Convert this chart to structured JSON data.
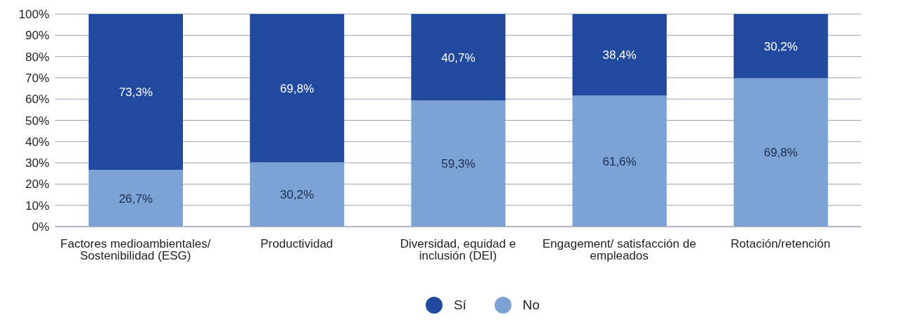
{
  "chart_data": {
    "type": "bar",
    "stacked": true,
    "categories": [
      "Factores medioambientales/ Sostenibilidad (ESG)",
      "Productividad",
      "Diversidad, equidad e inclusión (DEI)",
      "Engagement/ satisfacción de empleados",
      "Rotación/retención"
    ],
    "series": [
      {
        "name": "No",
        "color": "#7ba3d6",
        "values": [
          26.7,
          30.2,
          59.3,
          61.6,
          69.8
        ],
        "value_labels": [
          "26,7%",
          "30,2%",
          "59,3%",
          "61,6%",
          "69,8%"
        ]
      },
      {
        "name": "Sí",
        "color": "#214a9e",
        "values": [
          73.3,
          69.8,
          40.7,
          38.4,
          30.2
        ],
        "value_labels": [
          "73,3%",
          "69,8%",
          "40,7%",
          "38,4%",
          "30,2%"
        ]
      }
    ],
    "ylim": [
      0,
      100
    ],
    "yticks": [
      {
        "value": 0,
        "label": "0%"
      },
      {
        "value": 10,
        "label": "10%"
      },
      {
        "value": 20,
        "label": "20%"
      },
      {
        "value": 30,
        "label": "30%"
      },
      {
        "value": 40,
        "label": "40%"
      },
      {
        "value": 50,
        "label": "50%"
      },
      {
        "value": 60,
        "label": "60%"
      },
      {
        "value": 70,
        "label": "70%"
      },
      {
        "value": 80,
        "label": "80%"
      },
      {
        "value": 90,
        "label": "90%"
      },
      {
        "value": 100,
        "label": "100%"
      }
    ],
    "grid": "y",
    "legend": "bottom"
  }
}
